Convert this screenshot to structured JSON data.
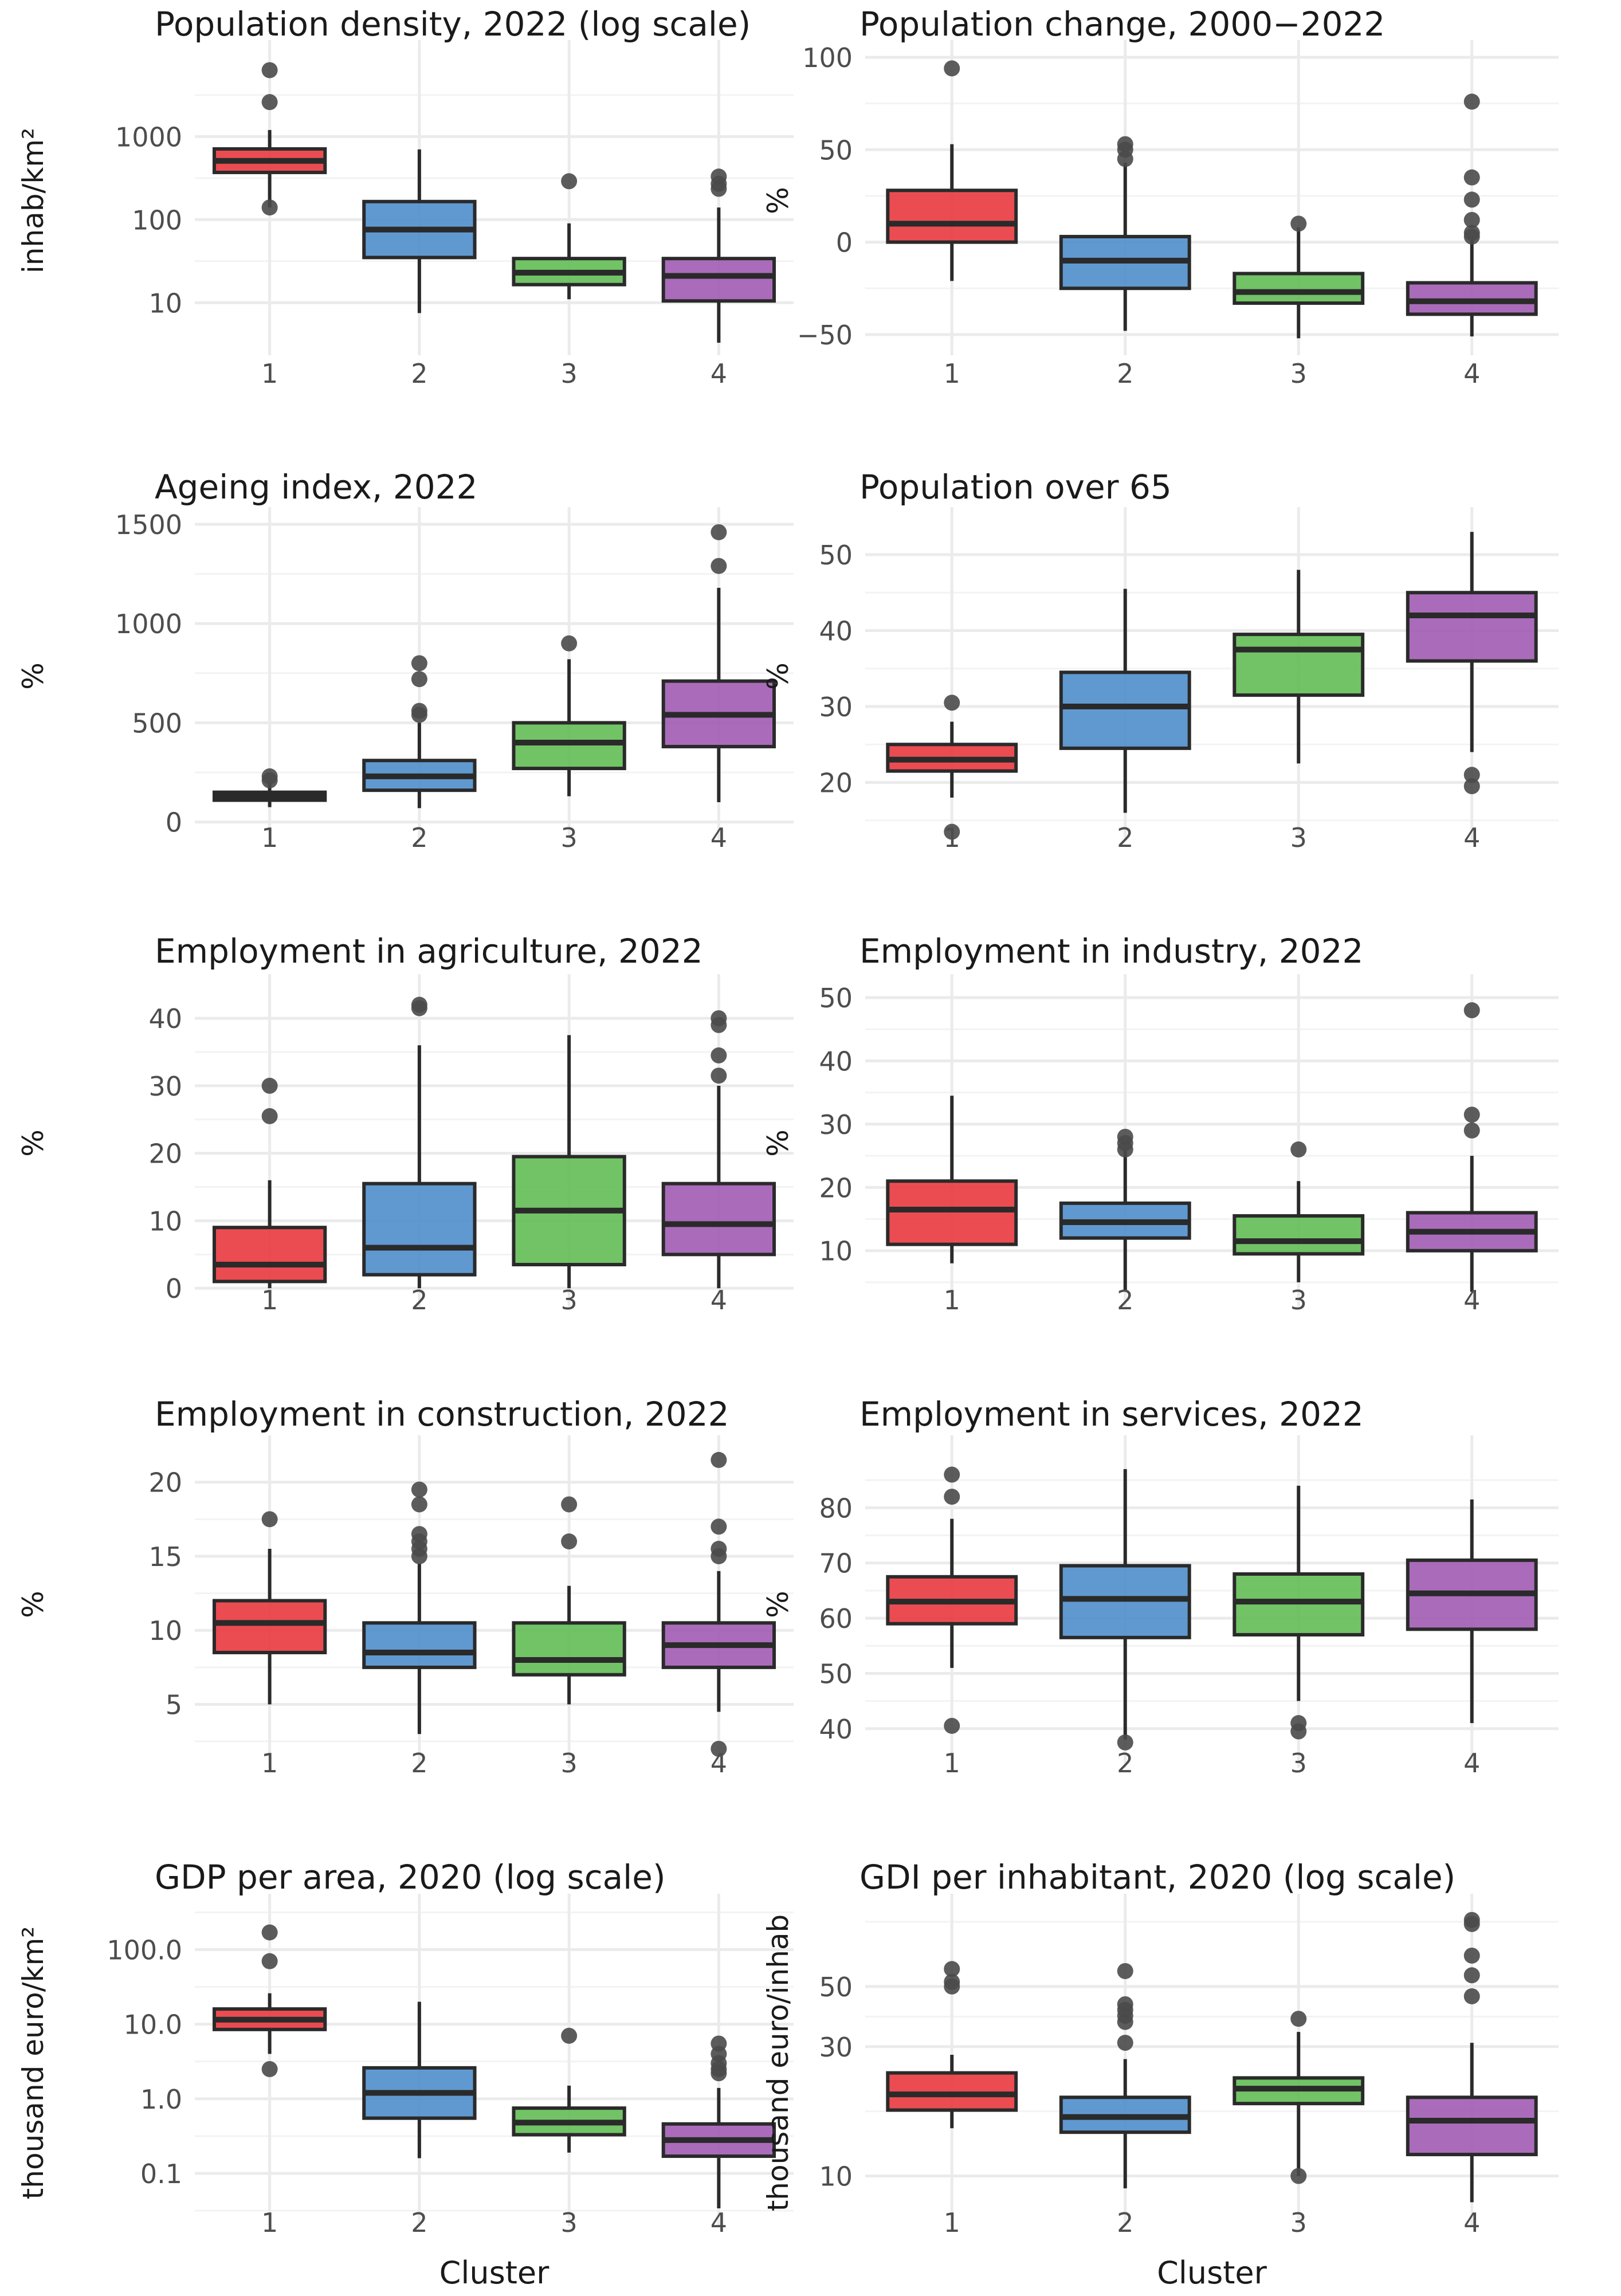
{
  "figure": {
    "xlabel": "Cluster"
  },
  "colors": {
    "c1": "#E8333A",
    "c2": "#4A8BC9",
    "c3": "#5DBB51",
    "c4": "#9E58B0",
    "outline": "#2a2a2a",
    "outlier": "#4a4a4a",
    "grid": "#ebebeb"
  },
  "chart_data": [
    {
      "type": "box",
      "title": "Population density, 2022 (log scale)",
      "ylabel": "inhab/km²",
      "xlabel": "",
      "scale": "log",
      "ylim": [
        3.2,
        9000
      ],
      "yticks": [
        10,
        100,
        1000
      ],
      "ytick_labels": [
        "10",
        "100",
        "1000"
      ],
      "categories": [
        "1",
        "2",
        "3",
        "4"
      ],
      "boxes": [
        {
          "whislo": 140,
          "q1": 370,
          "med": 510,
          "q3": 710,
          "whishi": 1200,
          "fliers": [
            6300,
            2600,
            140
          ]
        },
        {
          "whislo": 7.5,
          "q1": 35,
          "med": 76,
          "q3": 165,
          "whishi": 700,
          "fliers": []
        },
        {
          "whislo": 11,
          "q1": 16.5,
          "med": 23,
          "q3": 34,
          "whishi": 90,
          "fliers": [
            290
          ]
        },
        {
          "whislo": 3.3,
          "q1": 10.5,
          "med": 21,
          "q3": 34,
          "whishi": 140,
          "fliers": [
            330,
            270,
            235
          ]
        }
      ]
    },
    {
      "type": "box",
      "title": "Population change, 2000−2022",
      "ylabel": "%",
      "xlabel": "",
      "scale": "linear",
      "ylim": [
        -55,
        100
      ],
      "yticks": [
        -50,
        0,
        50,
        100
      ],
      "ytick_labels": [
        "−50",
        "0",
        "50",
        "100"
      ],
      "categories": [
        "1",
        "2",
        "3",
        "4"
      ],
      "boxes": [
        {
          "whislo": -21,
          "q1": 0,
          "med": 10,
          "q3": 28,
          "whishi": 53,
          "fliers": [
            94
          ]
        },
        {
          "whislo": -48,
          "q1": -25,
          "med": -10,
          "q3": 3,
          "whishi": 43,
          "fliers": [
            53,
            50,
            45
          ]
        },
        {
          "whislo": -52,
          "q1": -33,
          "med": -27,
          "q3": -17,
          "whishi": 8,
          "fliers": [
            10
          ]
        },
        {
          "whislo": -51,
          "q1": -39,
          "med": -32,
          "q3": -22,
          "whishi": 3,
          "fliers": [
            76,
            35,
            23,
            12,
            5,
            3
          ]
        }
      ]
    },
    {
      "type": "box",
      "title": "Ageing index, 2022",
      "ylabel": "%",
      "xlabel": "",
      "scale": "linear",
      "ylim": [
        -30,
        1500
      ],
      "yticks": [
        0,
        500,
        1000,
        1500
      ],
      "ytick_labels": [
        "0",
        "500",
        "1000",
        "1500"
      ],
      "categories": [
        "1",
        "2",
        "3",
        "4"
      ],
      "boxes": [
        {
          "whislo": 75,
          "q1": 110,
          "med": 130,
          "q3": 150,
          "whishi": 200,
          "fliers": [
            230,
            210
          ]
        },
        {
          "whislo": 70,
          "q1": 160,
          "med": 230,
          "q3": 310,
          "whishi": 500,
          "fliers": [
            800,
            720,
            560,
            540
          ]
        },
        {
          "whislo": 130,
          "q1": 270,
          "med": 400,
          "q3": 500,
          "whishi": 820,
          "fliers": [
            900
          ]
        },
        {
          "whislo": 100,
          "q1": 380,
          "med": 540,
          "q3": 710,
          "whishi": 1180,
          "fliers": [
            1460,
            1290
          ]
        }
      ]
    },
    {
      "type": "box",
      "title": "Population over 65",
      "ylabel": "%",
      "xlabel": "",
      "scale": "linear",
      "ylim": [
        14,
        54
      ],
      "yticks": [
        20,
        30,
        40,
        50
      ],
      "ytick_labels": [
        "20",
        "30",
        "40",
        "50"
      ],
      "categories": [
        "1",
        "2",
        "3",
        "4"
      ],
      "boxes": [
        {
          "whislo": 18,
          "q1": 21.5,
          "med": 23,
          "q3": 25,
          "whishi": 28,
          "fliers": [
            30.5,
            13.5
          ]
        },
        {
          "whislo": 16,
          "q1": 24.5,
          "med": 30,
          "q3": 34.5,
          "whishi": 45.5,
          "fliers": []
        },
        {
          "whislo": 22.5,
          "q1": 31.5,
          "med": 37.5,
          "q3": 39.5,
          "whishi": 48,
          "fliers": []
        },
        {
          "whislo": 24,
          "q1": 36,
          "med": 42,
          "q3": 45,
          "whishi": 53,
          "fliers": [
            21,
            19.5
          ]
        }
      ]
    },
    {
      "type": "box",
      "title": "Employment in agriculture, 2022",
      "ylabel": "%",
      "xlabel": "",
      "scale": "linear",
      "ylim": [
        -1,
        44
      ],
      "yticks": [
        0,
        10,
        20,
        30,
        40
      ],
      "ytick_labels": [
        "0",
        "10",
        "20",
        "30",
        "40"
      ],
      "categories": [
        "1",
        "2",
        "3",
        "4"
      ],
      "boxes": [
        {
          "whislo": 0,
          "q1": 1,
          "med": 3.5,
          "q3": 9,
          "whishi": 16,
          "fliers": [
            30,
            25.5
          ]
        },
        {
          "whislo": 0,
          "q1": 2,
          "med": 6,
          "q3": 15.5,
          "whishi": 36,
          "fliers": [
            42,
            41.5
          ]
        },
        {
          "whislo": 0,
          "q1": 3.5,
          "med": 11.5,
          "q3": 19.5,
          "whishi": 37.5,
          "fliers": []
        },
        {
          "whislo": 0,
          "q1": 5,
          "med": 9.5,
          "q3": 15.5,
          "whishi": 30,
          "fliers": [
            40,
            39,
            34.5,
            31.5
          ]
        }
      ]
    },
    {
      "type": "box",
      "title": "Employment in industry, 2022",
      "ylabel": "%",
      "xlabel": "",
      "scale": "linear",
      "ylim": [
        3,
        51
      ],
      "yticks": [
        10,
        20,
        30,
        40,
        50
      ],
      "ytick_labels": [
        "10",
        "20",
        "30",
        "40",
        "50"
      ],
      "categories": [
        "1",
        "2",
        "3",
        "4"
      ],
      "boxes": [
        {
          "whislo": 8,
          "q1": 11,
          "med": 16.5,
          "q3": 21,
          "whishi": 34.5,
          "fliers": []
        },
        {
          "whislo": 3.5,
          "q1": 12,
          "med": 14.5,
          "q3": 17.5,
          "whishi": 26,
          "fliers": [
            28,
            27,
            26
          ]
        },
        {
          "whislo": 5,
          "q1": 9.5,
          "med": 11.5,
          "q3": 15.5,
          "whishi": 21,
          "fliers": [
            26
          ]
        },
        {
          "whislo": 3.5,
          "q1": 10,
          "med": 13,
          "q3": 16,
          "whishi": 25,
          "fliers": [
            48,
            31.5,
            29
          ]
        }
      ]
    },
    {
      "type": "box",
      "title": "Employment in construction, 2022",
      "ylabel": "%",
      "xlabel": "",
      "scale": "linear",
      "ylim": [
        1.5,
        22
      ],
      "yticks": [
        5,
        10,
        15,
        20
      ],
      "ytick_labels": [
        "5",
        "10",
        "15",
        "20"
      ],
      "categories": [
        "1",
        "2",
        "3",
        "4"
      ],
      "boxes": [
        {
          "whislo": 5,
          "q1": 8.5,
          "med": 10.5,
          "q3": 12,
          "whishi": 15.5,
          "fliers": [
            17.5
          ]
        },
        {
          "whislo": 3,
          "q1": 7.5,
          "med": 8.5,
          "q3": 10.5,
          "whishi": 14.5,
          "fliers": [
            19.5,
            18.5,
            16.5,
            16,
            15.5,
            15
          ]
        },
        {
          "whislo": 5,
          "q1": 7,
          "med": 8,
          "q3": 10.5,
          "whishi": 13,
          "fliers": [
            18.5,
            16
          ]
        },
        {
          "whislo": 4.5,
          "q1": 7.5,
          "med": 9,
          "q3": 10.5,
          "whishi": 14,
          "fliers": [
            21.5,
            17,
            15.5,
            15,
            2
          ]
        }
      ]
    },
    {
      "type": "box",
      "title": "Employment in services, 2022",
      "ylabel": "%",
      "xlabel": "",
      "scale": "linear",
      "ylim": [
        35,
        90
      ],
      "yticks": [
        40,
        50,
        60,
        70,
        80
      ],
      "ytick_labels": [
        "40",
        "50",
        "60",
        "70",
        "80"
      ],
      "categories": [
        "1",
        "2",
        "3",
        "4"
      ],
      "boxes": [
        {
          "whislo": 51,
          "q1": 59,
          "med": 63,
          "q3": 67.5,
          "whishi": 78,
          "fliers": [
            86,
            82,
            40.5
          ]
        },
        {
          "whislo": 38,
          "q1": 56.5,
          "med": 63.5,
          "q3": 69.5,
          "whishi": 87,
          "fliers": [
            37.5
          ]
        },
        {
          "whislo": 45,
          "q1": 57,
          "med": 63,
          "q3": 68,
          "whishi": 84,
          "fliers": [
            41,
            39.5
          ]
        },
        {
          "whislo": 41,
          "q1": 58,
          "med": 64.5,
          "q3": 70.5,
          "whishi": 81.5,
          "fliers": []
        }
      ]
    },
    {
      "type": "box",
      "title": "GDP per area, 2020 (log scale)",
      "ylabel": "thousand euro/km²",
      "xlabel": "Cluster",
      "scale": "log",
      "ylim": [
        0.028,
        330
      ],
      "yticks": [
        0.1,
        1,
        10,
        100
      ],
      "ytick_labels": [
        "0.1",
        "1.0",
        "10.0",
        "100.0"
      ],
      "categories": [
        "1",
        "2",
        "3",
        "4"
      ],
      "boxes": [
        {
          "whislo": 4,
          "q1": 8.5,
          "med": 11.5,
          "q3": 16,
          "whishi": 26,
          "fliers": [
            170,
            70,
            2.5
          ]
        },
        {
          "whislo": 0.16,
          "q1": 0.55,
          "med": 1.2,
          "q3": 2.6,
          "whishi": 20,
          "fliers": []
        },
        {
          "whislo": 0.19,
          "q1": 0.33,
          "med": 0.48,
          "q3": 0.75,
          "whishi": 1.5,
          "fliers": [
            7
          ]
        },
        {
          "whislo": 0.034,
          "q1": 0.17,
          "med": 0.28,
          "q3": 0.46,
          "whishi": 1.4,
          "fliers": [
            5.5,
            4,
            3,
            2.5,
            2.2
          ]
        }
      ]
    },
    {
      "type": "box",
      "title": "GDI per inhabitant, 2020 (log scale)",
      "ylabel": "thousand euro/inhab",
      "xlabel": "Cluster",
      "scale": "log",
      "ylim": [
        7.2,
        95
      ],
      "yticks": [
        10,
        30,
        50
      ],
      "ytick_labels": [
        "10",
        "30",
        "50"
      ],
      "categories": [
        "1",
        "2",
        "3",
        "4"
      ],
      "boxes": [
        {
          "whislo": 15,
          "q1": 17.5,
          "med": 20,
          "q3": 24,
          "whishi": 28,
          "fliers": [
            58,
            52,
            50
          ]
        },
        {
          "whislo": 9,
          "q1": 14.5,
          "med": 16.5,
          "q3": 19.5,
          "whishi": 27,
          "fliers": [
            57,
            43,
            41,
            39,
            37,
            31
          ]
        },
        {
          "whislo": 10,
          "q1": 18.5,
          "med": 21,
          "q3": 23,
          "whishi": 34,
          "fliers": [
            38,
            10
          ]
        },
        {
          "whislo": 8,
          "q1": 12,
          "med": 16,
          "q3": 19.5,
          "whishi": 31,
          "fliers": [
            88,
            85,
            65,
            55,
            46
          ]
        }
      ]
    }
  ]
}
